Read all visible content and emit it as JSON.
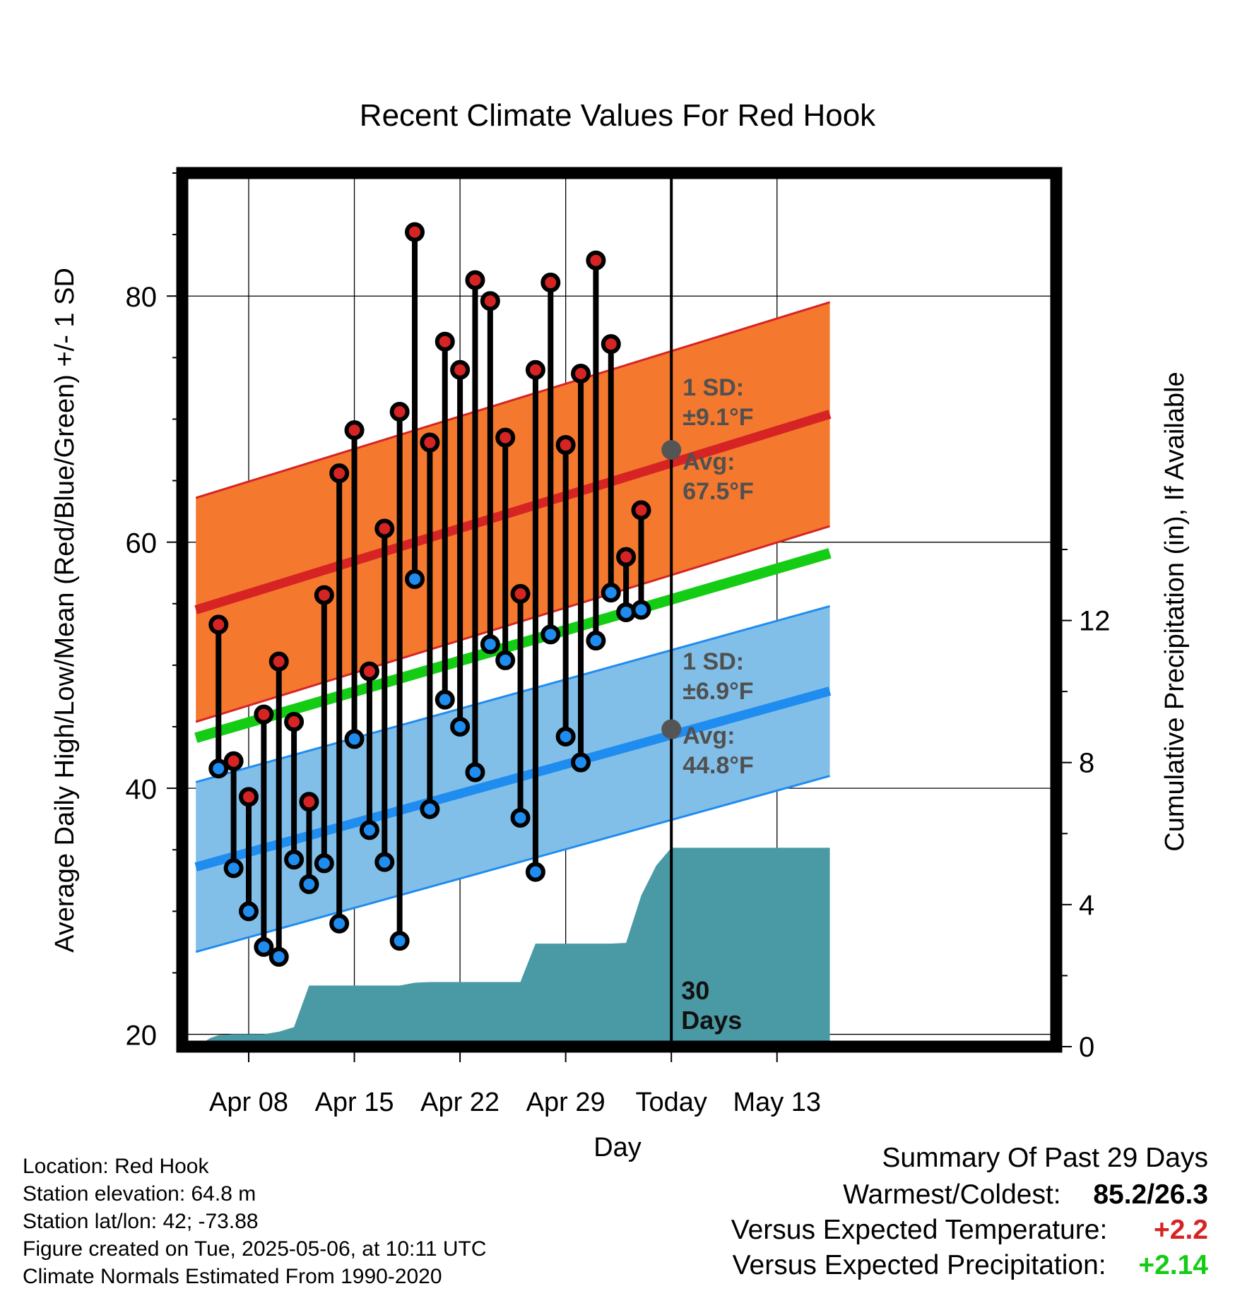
{
  "chart_data": {
    "type": "line",
    "title": "Recent Climate Values For Red Hook",
    "xlabel": "Day",
    "ylabel": "Average Daily High/Low/Mean (Red/Blue/Green) +/- 1 SD",
    "y2label": "Cumulative Precipitation (in), If Available",
    "ylim": [
      19,
      90
    ],
    "y2lim": [
      0,
      24.6
    ],
    "xlim": [
      -4.4,
      53.5
    ],
    "x_ticks": [
      {
        "x": 0,
        "label": "Apr 08"
      },
      {
        "x": 7,
        "label": "Apr 15"
      },
      {
        "x": 14,
        "label": "Apr 22"
      },
      {
        "x": 21,
        "label": "Apr 29"
      },
      {
        "x": 28,
        "label": "Today"
      },
      {
        "x": 35,
        "label": "May 13"
      }
    ],
    "y_ticks": [
      20,
      40,
      60,
      80
    ],
    "y2_ticks": [
      0,
      4,
      8,
      12
    ],
    "grid": true,
    "today_x": 28,
    "days": [
      "Apr 06",
      "Apr 07",
      "Apr 08",
      "Apr 09",
      "Apr 10",
      "Apr 11",
      "Apr 12",
      "Apr 13",
      "Apr 14",
      "Apr 15",
      "Apr 16",
      "Apr 17",
      "Apr 18",
      "Apr 19",
      "Apr 20",
      "Apr 21",
      "Apr 22",
      "Apr 23",
      "Apr 24",
      "Apr 25",
      "Apr 26",
      "Apr 27",
      "Apr 28",
      "Apr 29",
      "Apr 30",
      "May 01",
      "May 02",
      "May 03",
      "May 04",
      "May 05"
    ],
    "highs": [
      53.3,
      42.2,
      39.3,
      46.0,
      50.3,
      45.4,
      38.9,
      55.7,
      65.6,
      69.1,
      49.5,
      61.1,
      70.6,
      85.2,
      68.1,
      76.3,
      74.0,
      81.3,
      79.6,
      68.5,
      55.8,
      74.0,
      81.1,
      67.9,
      73.7,
      82.9,
      76.1,
      58.8,
      62.6,
      null
    ],
    "lows": [
      41.6,
      33.5,
      30.0,
      27.1,
      26.3,
      34.2,
      32.2,
      33.9,
      29.0,
      44.0,
      36.6,
      34.0,
      27.6,
      57.0,
      38.3,
      47.2,
      45.0,
      41.3,
      51.7,
      50.4,
      37.6,
      33.2,
      52.5,
      44.2,
      42.1,
      52.0,
      55.9,
      54.3,
      54.5,
      null
    ],
    "series": [
      {
        "name": "Normal High",
        "x": [
          -3.5,
          38.5
        ],
        "values": [
          54.5,
          70.4
        ],
        "sd": 9.1,
        "color": "#d62424",
        "band_color": "#f4782e"
      },
      {
        "name": "Normal Low",
        "x": [
          -3.5,
          38.5
        ],
        "values": [
          33.6,
          47.9
        ],
        "sd": 6.9,
        "color": "#1f8cf0",
        "band_color": "#82bfe8"
      },
      {
        "name": "Normal Mean",
        "x": [
          -3.5,
          38.5
        ],
        "values": [
          44.1,
          59.1
        ],
        "color": "#15cc15"
      },
      {
        "name": "Cumulative Precipitation",
        "x": [
          -3.5,
          -2.5,
          -2,
          -1,
          1,
          2,
          3,
          4,
          5,
          6,
          7,
          8,
          9,
          10,
          11,
          12,
          13,
          14,
          15,
          16,
          17,
          18,
          19,
          20,
          21,
          22,
          23,
          24,
          25,
          26,
          27,
          28,
          38.5
        ],
        "values": [
          0,
          0.25,
          0.32,
          0.35,
          0.35,
          0.42,
          0.55,
          1.72,
          1.72,
          1.72,
          1.72,
          1.72,
          1.72,
          1.72,
          1.8,
          1.82,
          1.82,
          1.82,
          1.82,
          1.82,
          1.82,
          1.82,
          2.9,
          2.9,
          2.9,
          2.9,
          2.9,
          2.9,
          2.92,
          4.25,
          5.1,
          5.6,
          5.6
        ],
        "color": "#4a9aa5"
      }
    ],
    "annotations": {
      "high_sd": "1 SD:",
      "high_sd_value": "±9.1°F",
      "high_avg": "Avg:",
      "high_avg_value": "67.5°F",
      "low_sd": "1 SD:",
      "low_sd_value": "±6.9°F",
      "low_avg": "Avg:",
      "low_avg_value": "44.8°F",
      "today_high_avg": 67.5,
      "today_low_avg": 44.8,
      "window_days": "30",
      "window_unit": "Days"
    }
  },
  "info": {
    "location": "Location: Red Hook",
    "elevation": "Station elevation: 64.8 m",
    "latlon": "Station lat/lon: 42; -73.88",
    "created": "Figure created on Tue, 2025-05-06, at 10:11 UTC",
    "normals": "Climate Normals Estimated From 1990-2020"
  },
  "summary": {
    "heading": "Summary Of Past 29 Days",
    "warmest_label": "Warmest/Coldest:",
    "warmest_value": "85.2/26.3",
    "temp_label": "Versus Expected Temperature:",
    "temp_value": "+2.2",
    "temp_color": "#d62424",
    "precip_label": "Versus Expected Precipitation:",
    "precip_value": "+2.14",
    "precip_color": "#15cc15"
  }
}
